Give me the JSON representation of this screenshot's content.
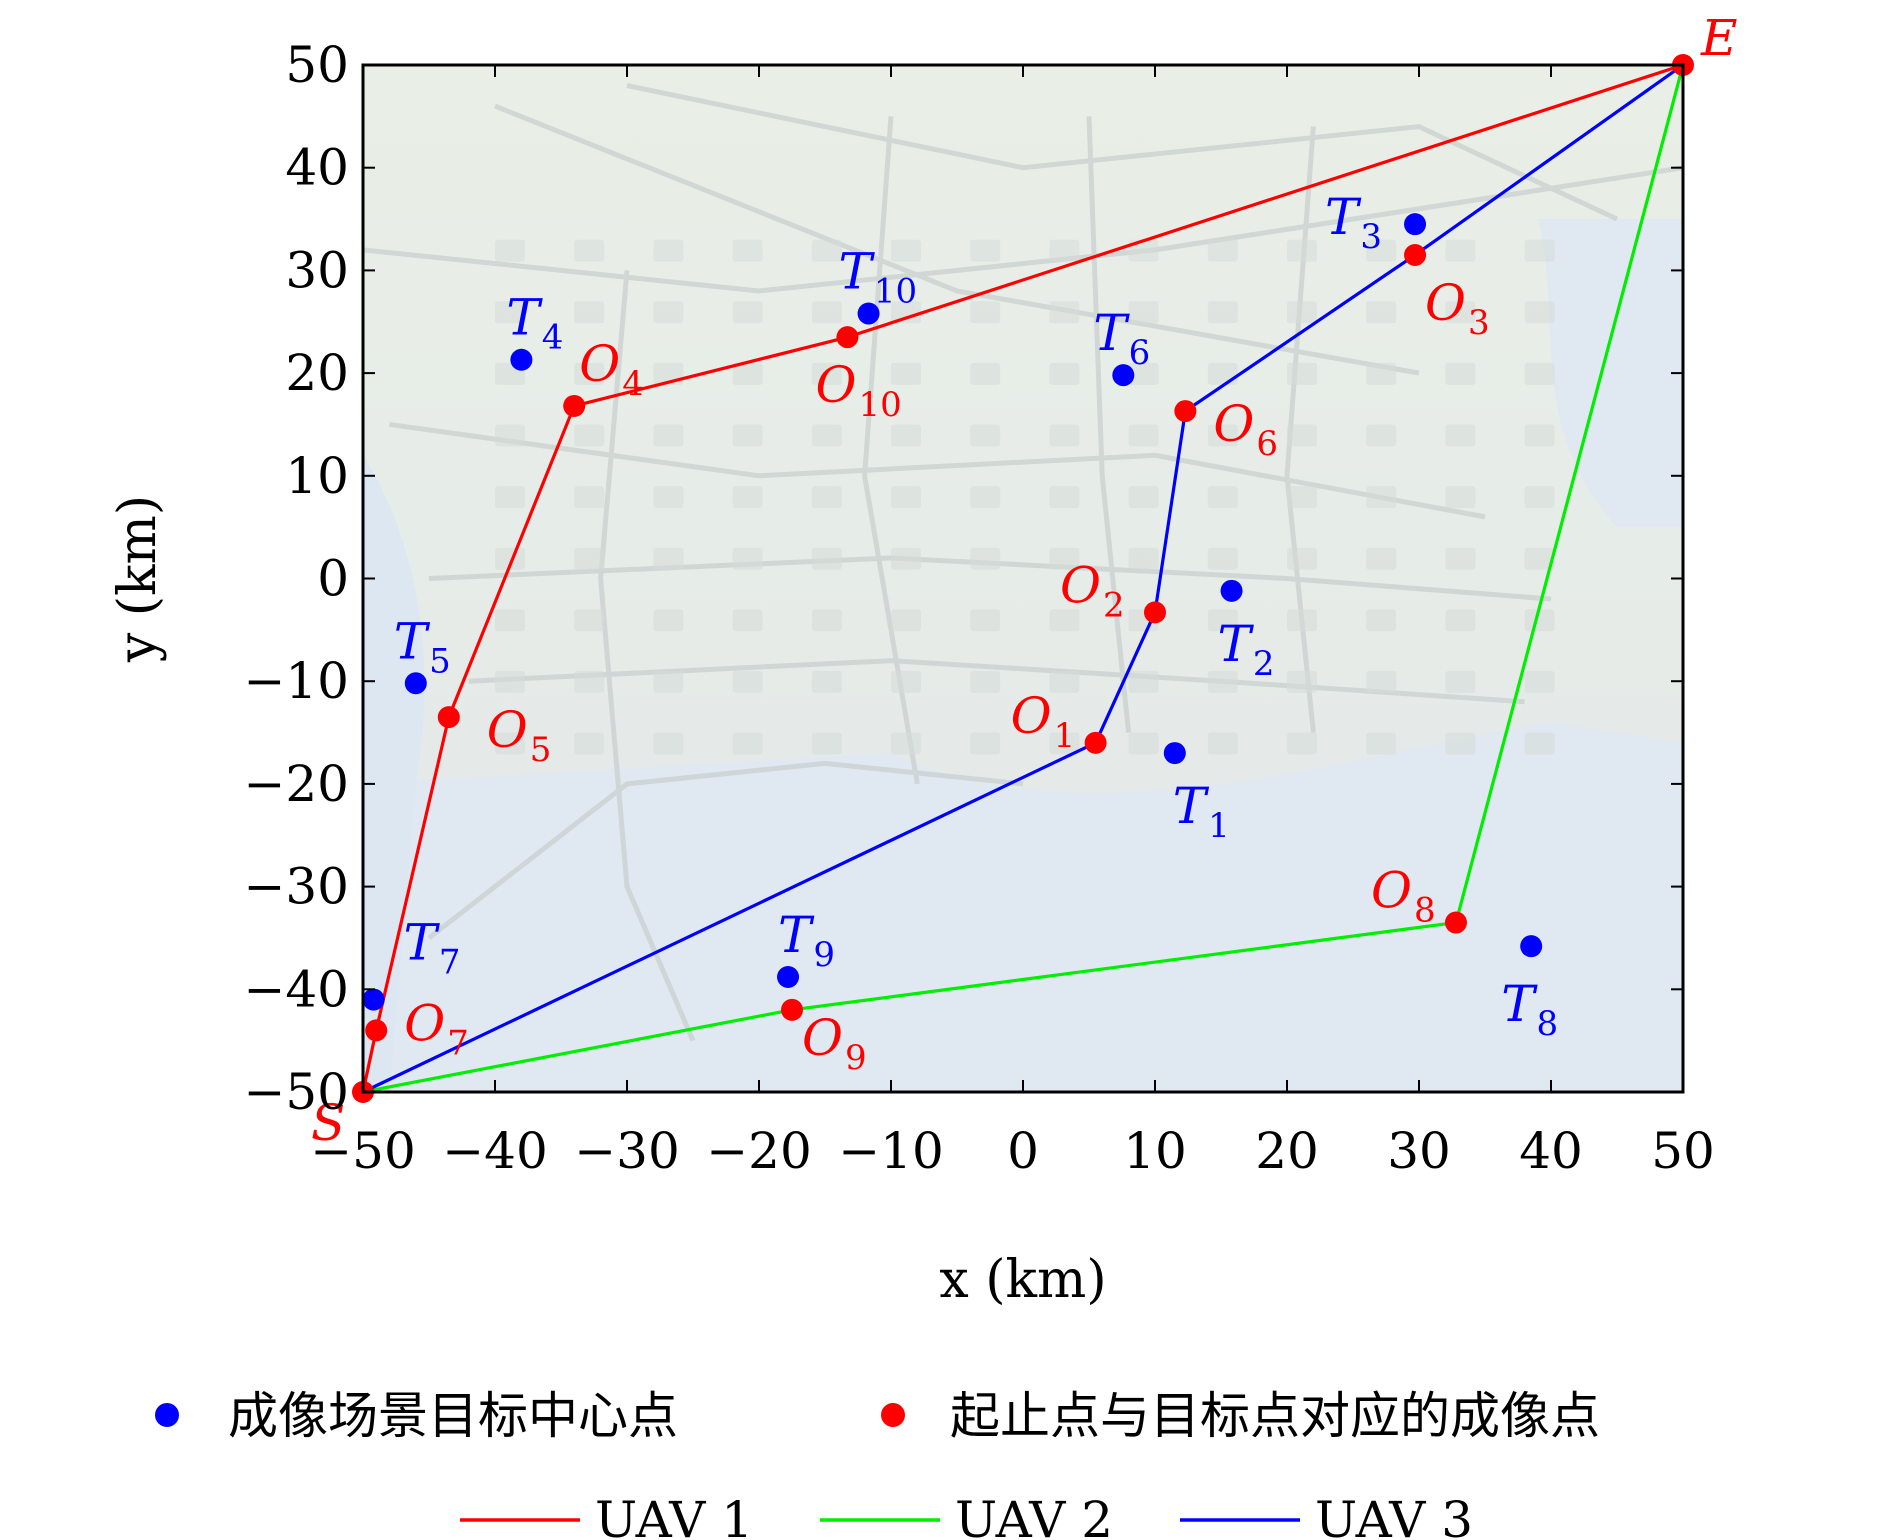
{
  "chart_data": {
    "type": "scatter",
    "xlabel": "x (km)",
    "ylabel": "y (km)",
    "xlim": [
      -50,
      50
    ],
    "ylim": [
      -50,
      50
    ],
    "xticks": [
      -50,
      -40,
      -30,
      -20,
      -10,
      0,
      10,
      20,
      30,
      40,
      50
    ],
    "yticks": [
      -50,
      -40,
      -30,
      -20,
      -10,
      0,
      10,
      20,
      30,
      40,
      50
    ],
    "grid": false,
    "background": "city map (aerial)",
    "endpoints": [
      {
        "label": "S",
        "x": -50,
        "y": -50
      },
      {
        "label": "E",
        "x": 50,
        "y": 50
      }
    ],
    "target_centers": [
      {
        "label": "T",
        "sub": "1",
        "x": 11.5,
        "y": -17.0
      },
      {
        "label": "T",
        "sub": "2",
        "x": 15.8,
        "y": -1.2
      },
      {
        "label": "T",
        "sub": "3",
        "x": 29.7,
        "y": 34.5
      },
      {
        "label": "T",
        "sub": "4",
        "x": -38.0,
        "y": 21.3
      },
      {
        "label": "T",
        "sub": "5",
        "x": -46.0,
        "y": -10.2
      },
      {
        "label": "T",
        "sub": "6",
        "x": 7.6,
        "y": 19.8
      },
      {
        "label": "T",
        "sub": "7",
        "x": -49.2,
        "y": -41.0
      },
      {
        "label": "T",
        "sub": "8",
        "x": 38.5,
        "y": -35.8
      },
      {
        "label": "T",
        "sub": "9",
        "x": -17.8,
        "y": -38.8
      },
      {
        "label": "T",
        "sub": "10",
        "x": -11.7,
        "y": 25.8
      }
    ],
    "imaging_points": [
      {
        "label": "O",
        "sub": "1",
        "x": 5.5,
        "y": -16.0
      },
      {
        "label": "O",
        "sub": "2",
        "x": 10.0,
        "y": -3.3
      },
      {
        "label": "O",
        "sub": "3",
        "x": 29.7,
        "y": 31.5
      },
      {
        "label": "O",
        "sub": "4",
        "x": -34.0,
        "y": 16.8
      },
      {
        "label": "O",
        "sub": "5",
        "x": -43.5,
        "y": -13.5
      },
      {
        "label": "O",
        "sub": "6",
        "x": 12.3,
        "y": 16.3
      },
      {
        "label": "O",
        "sub": "7",
        "x": -49.0,
        "y": -44.0
      },
      {
        "label": "O",
        "sub": "8",
        "x": 32.8,
        "y": -33.5
      },
      {
        "label": "O",
        "sub": "9",
        "x": -17.5,
        "y": -42.0
      },
      {
        "label": "O",
        "sub": "10",
        "x": -13.3,
        "y": 23.5
      }
    ],
    "series": [
      {
        "name": "UAV 1",
        "color": "#ff0000",
        "x": [
          -50,
          -49.0,
          -43.5,
          -34.0,
          -13.3,
          50
        ],
        "y": [
          -50,
          -44.0,
          -13.5,
          16.8,
          23.5,
          50
        ]
      },
      {
        "name": "UAV 2",
        "color": "#00ee00",
        "x": [
          -50,
          -17.5,
          32.8,
          50
        ],
        "y": [
          -50,
          -42.0,
          -33.5,
          50
        ]
      },
      {
        "name": "UAV 3",
        "color": "#0000ff",
        "x": [
          -50,
          5.5,
          10.0,
          12.3,
          29.7,
          50
        ],
        "y": [
          -50,
          -16.0,
          -3.3,
          16.3,
          31.5,
          50
        ]
      }
    ],
    "legend": {
      "placement": "bottom",
      "markers": [
        {
          "label": "成像场景目标中心点",
          "color": "#0000ff"
        },
        {
          "label": "起止点与目标点对应的成像点",
          "color": "#ff0000"
        }
      ],
      "lines": [
        {
          "label": "UAV 1",
          "color": "#ff0000"
        },
        {
          "label": "UAV 2",
          "color": "#00ee00"
        },
        {
          "label": "UAV 3",
          "color": "#0000ff"
        }
      ]
    }
  }
}
